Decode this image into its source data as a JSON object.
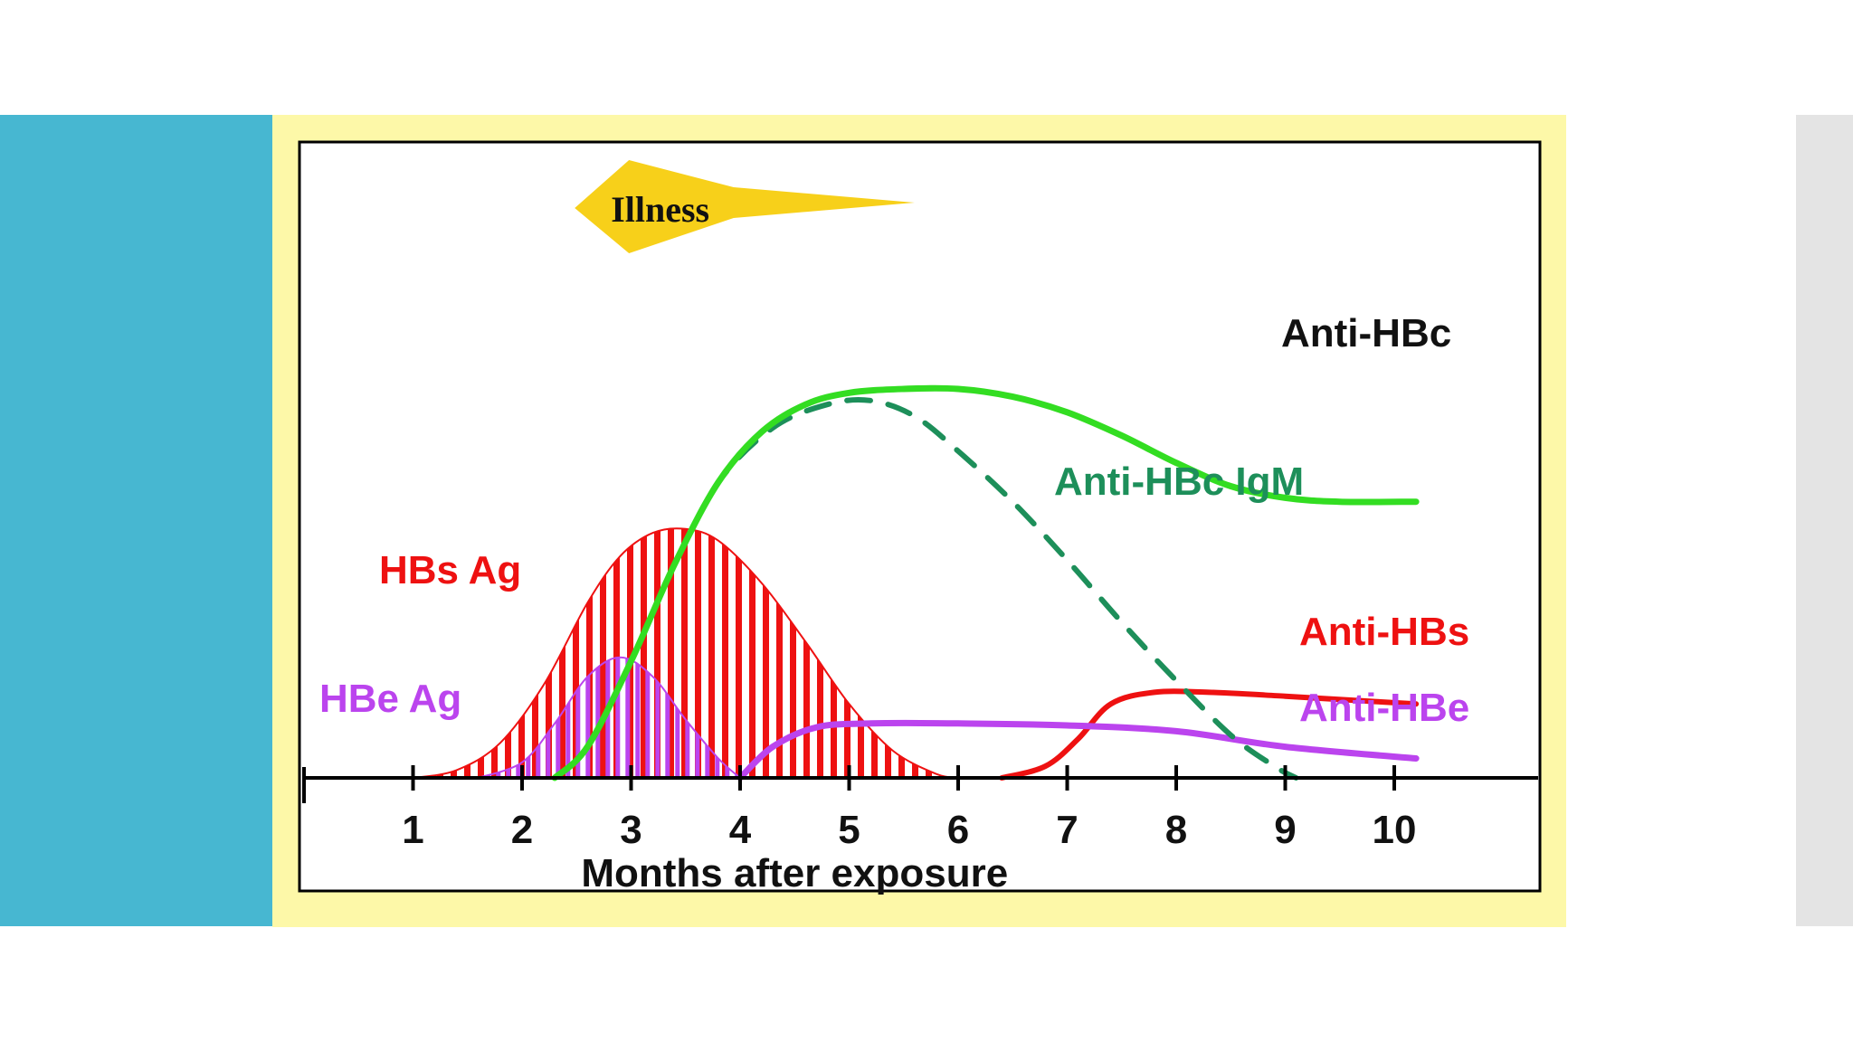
{
  "chart_data": {
    "type": "line",
    "title": "",
    "xlabel": "Months after exposure",
    "ylabel": "",
    "xlim": [
      0,
      10.6
    ],
    "ylim": [
      0,
      100
    ],
    "x_ticks": [
      1,
      2,
      3,
      4,
      5,
      6,
      7,
      8,
      9,
      10
    ],
    "grid": false,
    "annotation": {
      "label": "Illness",
      "x_start": 2.4,
      "x_end": 5.6
    },
    "series": [
      {
        "name": "Anti-HBc",
        "color": "#33dd22",
        "style": "solid",
        "points": [
          [
            2.3,
            0
          ],
          [
            2.6,
            8
          ],
          [
            3.0,
            30
          ],
          [
            3.4,
            55
          ],
          [
            3.8,
            76
          ],
          [
            4.2,
            89
          ],
          [
            4.6,
            96
          ],
          [
            5.0,
            99
          ],
          [
            5.5,
            100
          ],
          [
            6.0,
            100
          ],
          [
            6.5,
            98
          ],
          [
            7.0,
            94
          ],
          [
            7.5,
            88
          ],
          [
            8.0,
            81
          ],
          [
            8.5,
            75
          ],
          [
            9.0,
            72
          ],
          [
            9.5,
            71
          ],
          [
            10.2,
            71
          ]
        ]
      },
      {
        "name": "Anti-HBc IgM",
        "color": "#1d8f5a",
        "style": "dashed",
        "points": [
          [
            3.4,
            55
          ],
          [
            3.8,
            76
          ],
          [
            4.3,
            90
          ],
          [
            4.8,
            96
          ],
          [
            5.2,
            97
          ],
          [
            5.6,
            93
          ],
          [
            6.0,
            84
          ],
          [
            6.5,
            71
          ],
          [
            7.0,
            56
          ],
          [
            7.5,
            40
          ],
          [
            8.0,
            25
          ],
          [
            8.5,
            11
          ],
          [
            8.9,
            3
          ],
          [
            9.1,
            0
          ]
        ]
      },
      {
        "name": "HBs Ag",
        "color": "#ee1111",
        "style": "hatched-area",
        "points": [
          [
            1.0,
            0
          ],
          [
            1.4,
            2
          ],
          [
            1.8,
            9
          ],
          [
            2.2,
            24
          ],
          [
            2.6,
            45
          ],
          [
            2.9,
            57
          ],
          [
            3.2,
            63
          ],
          [
            3.5,
            64
          ],
          [
            3.8,
            61
          ],
          [
            4.2,
            50
          ],
          [
            4.6,
            35
          ],
          [
            5.0,
            19
          ],
          [
            5.4,
            7
          ],
          [
            5.8,
            1
          ],
          [
            6.0,
            0
          ]
        ]
      },
      {
        "name": "HBe Ag",
        "color": "#bb44ee",
        "style": "hatched-area",
        "points": [
          [
            1.6,
            0
          ],
          [
            2.0,
            4
          ],
          [
            2.3,
            14
          ],
          [
            2.6,
            26
          ],
          [
            2.9,
            31
          ],
          [
            3.2,
            26
          ],
          [
            3.5,
            15
          ],
          [
            3.8,
            5
          ],
          [
            4.0,
            0
          ]
        ]
      },
      {
        "name": "Anti-HBs",
        "color": "#ee1111",
        "style": "solid",
        "points": [
          [
            6.4,
            0
          ],
          [
            6.8,
            3
          ],
          [
            7.1,
            10
          ],
          [
            7.4,
            19
          ],
          [
            7.8,
            22
          ],
          [
            8.3,
            22
          ],
          [
            9.0,
            21
          ],
          [
            9.6,
            20
          ],
          [
            10.2,
            19
          ]
        ]
      },
      {
        "name": "Anti-HBe",
        "color": "#bb44ee",
        "style": "solid",
        "points": [
          [
            4.0,
            0
          ],
          [
            4.3,
            8
          ],
          [
            4.7,
            13
          ],
          [
            5.2,
            14
          ],
          [
            6.0,
            14
          ],
          [
            7.0,
            13.5
          ],
          [
            8.0,
            12
          ],
          [
            9.0,
            8
          ],
          [
            10.2,
            5
          ]
        ]
      }
    ]
  }
}
